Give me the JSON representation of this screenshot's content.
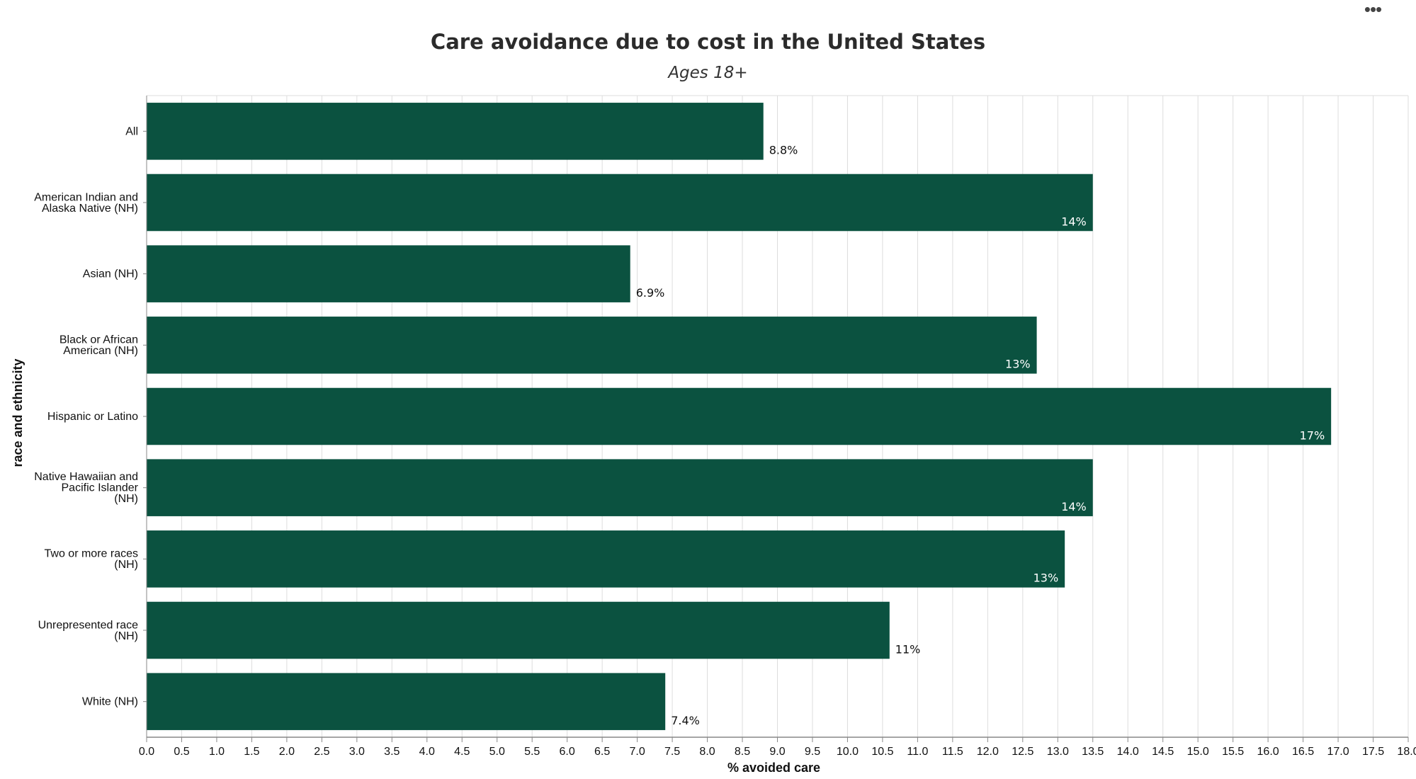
{
  "menu": {
    "icon": "more-horizontal-icon",
    "label": "•••"
  },
  "chart_data": {
    "type": "bar",
    "orientation": "horizontal",
    "title": "Care avoidance due to cost in the United States",
    "subtitle": "Ages 18+",
    "xlabel": "% avoided care",
    "ylabel": "race and ethnicity",
    "xlim": [
      0,
      18
    ],
    "xtick_step": 0.5,
    "grid": true,
    "bar_color": "#0b5240",
    "categories": [
      [
        "All"
      ],
      [
        "American Indian and",
        "Alaska Native (NH)"
      ],
      [
        "Asian (NH)"
      ],
      [
        "Black or African",
        "American (NH)"
      ],
      [
        "Hispanic or Latino"
      ],
      [
        "Native Hawaiian and",
        "Pacific Islander",
        "(NH)"
      ],
      [
        "Two or more races",
        "(NH)"
      ],
      [
        "Unrepresented race",
        "(NH)"
      ],
      [
        "White (NH)"
      ]
    ],
    "values": [
      8.8,
      13.5,
      6.9,
      12.7,
      16.9,
      13.5,
      13.1,
      10.6,
      7.4
    ],
    "data_labels": [
      "8.8%",
      "14%",
      "6.9%",
      "13%",
      "17%",
      "14%",
      "13%",
      "11%",
      "7.4%"
    ]
  }
}
